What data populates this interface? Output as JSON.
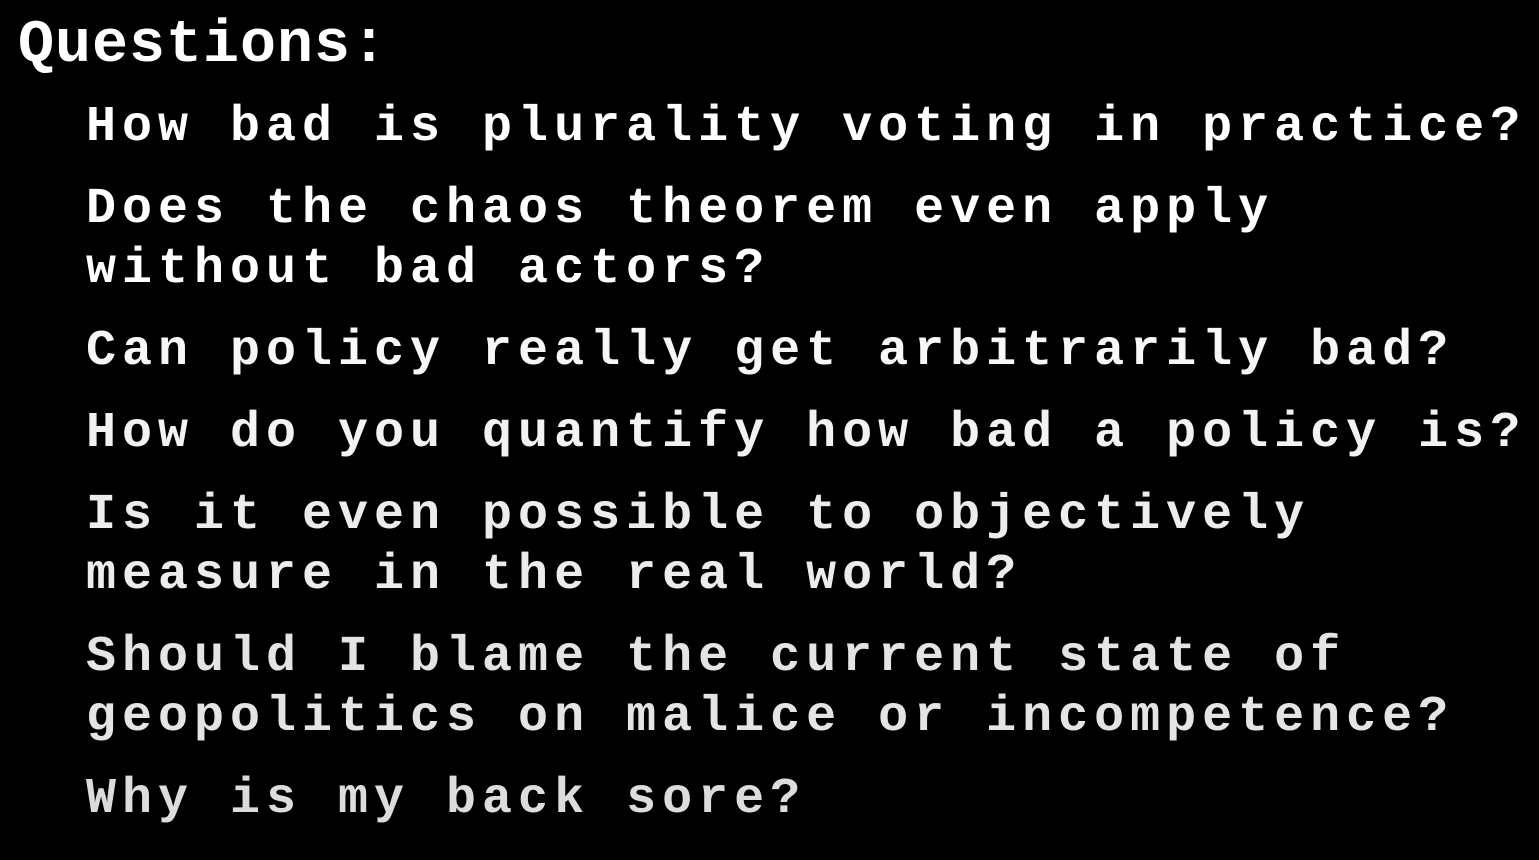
{
  "slide": {
    "title": "Questions:",
    "colors": {
      "background": "#000000",
      "text": "#ffffff"
    },
    "questions": [
      {
        "lines": [
          "How bad is plurality voting in practice?"
        ],
        "color": "#ffffff"
      },
      {
        "lines": [
          "Does the chaos theorem even apply",
          "without bad actors?"
        ],
        "color": "#ffffff"
      },
      {
        "lines": [
          "Can policy really get arbitrarily bad?"
        ],
        "color": "#f7f7f7"
      },
      {
        "lines": [
          "How do you quantify how bad a policy is?"
        ],
        "color": "#f2f2f2"
      },
      {
        "lines": [
          "Is it even possible to objectively",
          "measure in the real world?"
        ],
        "color": "#ececec"
      },
      {
        "lines": [
          "Should I blame the current state of",
          "geopolitics on malice or incompetence?"
        ],
        "color": "#e4e4e4"
      },
      {
        "lines": [
          "Why is my back sore?"
        ],
        "color": "#dcdcdc"
      }
    ]
  }
}
